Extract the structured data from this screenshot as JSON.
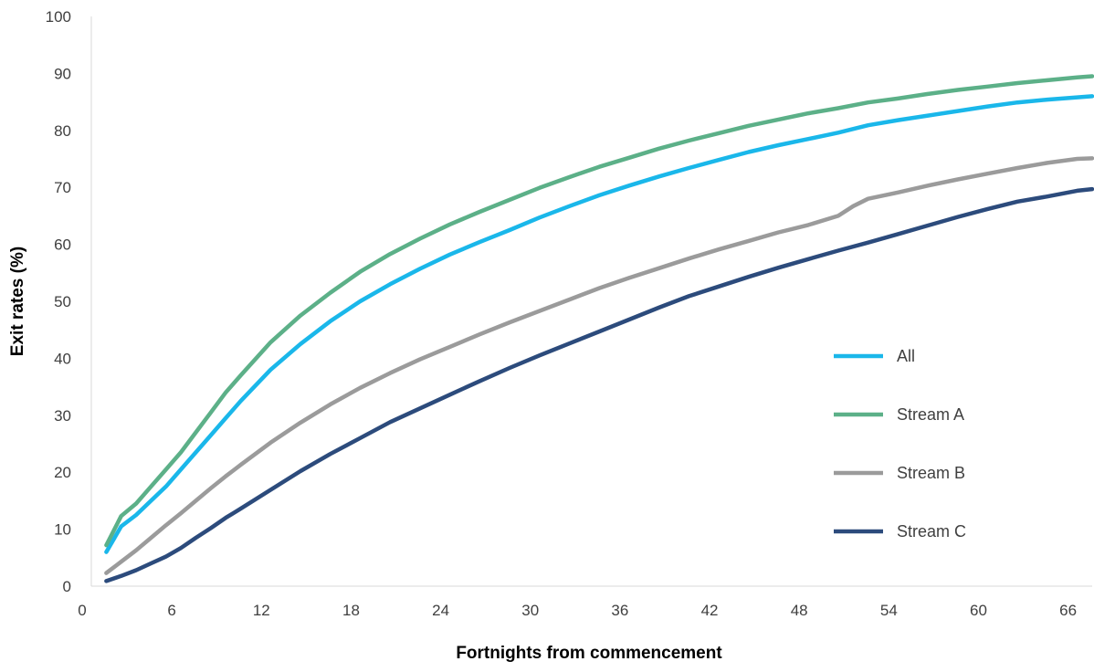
{
  "chart_data": {
    "type": "line",
    "xlabel": "Fortnights from commencement",
    "ylabel": "Exit rates (%)",
    "xlim": [
      0,
      67
    ],
    "ylim": [
      0,
      100
    ],
    "x_ticks": [
      0,
      6,
      12,
      18,
      24,
      30,
      36,
      42,
      48,
      54,
      60,
      66
    ],
    "y_ticks": [
      0,
      10,
      20,
      30,
      40,
      50,
      60,
      70,
      80,
      90,
      100
    ],
    "grid": false,
    "legend_position": "right",
    "series": [
      {
        "name": "All",
        "color": "#1ab7ea",
        "points": [
          [
            1,
            6
          ],
          [
            2,
            10.5
          ],
          [
            3,
            12.5
          ],
          [
            4,
            15
          ],
          [
            5,
            17.5
          ],
          [
            6,
            20.5
          ],
          [
            7,
            23.5
          ],
          [
            8,
            26.5
          ],
          [
            9,
            29.5
          ],
          [
            10,
            32.5
          ],
          [
            12,
            38
          ],
          [
            14,
            42.5
          ],
          [
            16,
            46.5
          ],
          [
            18,
            50
          ],
          [
            20,
            53
          ],
          [
            22,
            55.7
          ],
          [
            24,
            58.2
          ],
          [
            26,
            60.4
          ],
          [
            28,
            62.5
          ],
          [
            30,
            64.7
          ],
          [
            32,
            66.7
          ],
          [
            34,
            68.6
          ],
          [
            36,
            70.3
          ],
          [
            38,
            71.9
          ],
          [
            40,
            73.4
          ],
          [
            42,
            74.8
          ],
          [
            44,
            76.2
          ],
          [
            46,
            77.4
          ],
          [
            48,
            78.5
          ],
          [
            50,
            79.6
          ],
          [
            52,
            80.9
          ],
          [
            54,
            81.8
          ],
          [
            56,
            82.6
          ],
          [
            58,
            83.4
          ],
          [
            60,
            84.2
          ],
          [
            62,
            84.9
          ],
          [
            64,
            85.4
          ],
          [
            66,
            85.8
          ],
          [
            67,
            86
          ]
        ]
      },
      {
        "name": "Stream A",
        "color": "#5cb088",
        "points": [
          [
            1,
            7.2
          ],
          [
            2,
            12.3
          ],
          [
            3,
            14.5
          ],
          [
            4,
            17.5
          ],
          [
            5,
            20.5
          ],
          [
            6,
            23.5
          ],
          [
            7,
            27
          ],
          [
            8,
            30.5
          ],
          [
            9,
            34
          ],
          [
            10,
            37
          ],
          [
            12,
            42.8
          ],
          [
            14,
            47.5
          ],
          [
            16,
            51.5
          ],
          [
            18,
            55.2
          ],
          [
            20,
            58.3
          ],
          [
            22,
            61
          ],
          [
            24,
            63.5
          ],
          [
            26,
            65.7
          ],
          [
            28,
            67.8
          ],
          [
            30,
            69.9
          ],
          [
            32,
            71.8
          ],
          [
            34,
            73.6
          ],
          [
            36,
            75.2
          ],
          [
            38,
            76.8
          ],
          [
            40,
            78.2
          ],
          [
            42,
            79.5
          ],
          [
            44,
            80.8
          ],
          [
            46,
            81.9
          ],
          [
            48,
            83
          ],
          [
            50,
            83.9
          ],
          [
            52,
            84.9
          ],
          [
            54,
            85.6
          ],
          [
            56,
            86.4
          ],
          [
            58,
            87.1
          ],
          [
            60,
            87.7
          ],
          [
            62,
            88.3
          ],
          [
            64,
            88.8
          ],
          [
            66,
            89.3
          ],
          [
            67,
            89.5
          ]
        ]
      },
      {
        "name": "Stream B",
        "color": "#9b9b9b",
        "points": [
          [
            1,
            2.3
          ],
          [
            2,
            4.3
          ],
          [
            3,
            6.3
          ],
          [
            4,
            8.5
          ],
          [
            5,
            10.7
          ],
          [
            6,
            12.8
          ],
          [
            7,
            15
          ],
          [
            8,
            17.2
          ],
          [
            9,
            19.3
          ],
          [
            10,
            21.3
          ],
          [
            12,
            25.2
          ],
          [
            14,
            28.7
          ],
          [
            16,
            31.9
          ],
          [
            18,
            34.8
          ],
          [
            20,
            37.4
          ],
          [
            22,
            39.8
          ],
          [
            24,
            42
          ],
          [
            26,
            44.2
          ],
          [
            28,
            46.3
          ],
          [
            30,
            48.3
          ],
          [
            32,
            50.3
          ],
          [
            34,
            52.3
          ],
          [
            36,
            54.1
          ],
          [
            38,
            55.8
          ],
          [
            40,
            57.5
          ],
          [
            42,
            59.1
          ],
          [
            44,
            60.6
          ],
          [
            46,
            62.1
          ],
          [
            48,
            63.4
          ],
          [
            50,
            65
          ],
          [
            51,
            66.7
          ],
          [
            52,
            68
          ],
          [
            54,
            69.1
          ],
          [
            56,
            70.3
          ],
          [
            58,
            71.4
          ],
          [
            60,
            72.4
          ],
          [
            62,
            73.4
          ],
          [
            64,
            74.3
          ],
          [
            66,
            75
          ],
          [
            67,
            75.1
          ]
        ]
      },
      {
        "name": "Stream C",
        "color": "#2c4b7c",
        "points": [
          [
            1,
            0.9
          ],
          [
            2,
            1.8
          ],
          [
            3,
            2.8
          ],
          [
            4,
            4
          ],
          [
            5,
            5.2
          ],
          [
            6,
            6.7
          ],
          [
            7,
            8.5
          ],
          [
            8,
            10.2
          ],
          [
            9,
            12
          ],
          [
            10,
            13.6
          ],
          [
            12,
            16.9
          ],
          [
            14,
            20.2
          ],
          [
            16,
            23.2
          ],
          [
            18,
            26
          ],
          [
            20,
            28.8
          ],
          [
            22,
            31.2
          ],
          [
            24,
            33.6
          ],
          [
            26,
            36
          ],
          [
            28,
            38.3
          ],
          [
            30,
            40.5
          ],
          [
            32,
            42.6
          ],
          [
            34,
            44.7
          ],
          [
            36,
            46.8
          ],
          [
            38,
            48.9
          ],
          [
            40,
            50.9
          ],
          [
            42,
            52.6
          ],
          [
            44,
            54.3
          ],
          [
            46,
            55.9
          ],
          [
            48,
            57.4
          ],
          [
            50,
            58.9
          ],
          [
            52,
            60.3
          ],
          [
            54,
            61.8
          ],
          [
            56,
            63.3
          ],
          [
            58,
            64.8
          ],
          [
            60,
            66.2
          ],
          [
            62,
            67.5
          ],
          [
            64,
            68.4
          ],
          [
            66,
            69.4
          ],
          [
            67,
            69.7
          ]
        ]
      }
    ]
  }
}
